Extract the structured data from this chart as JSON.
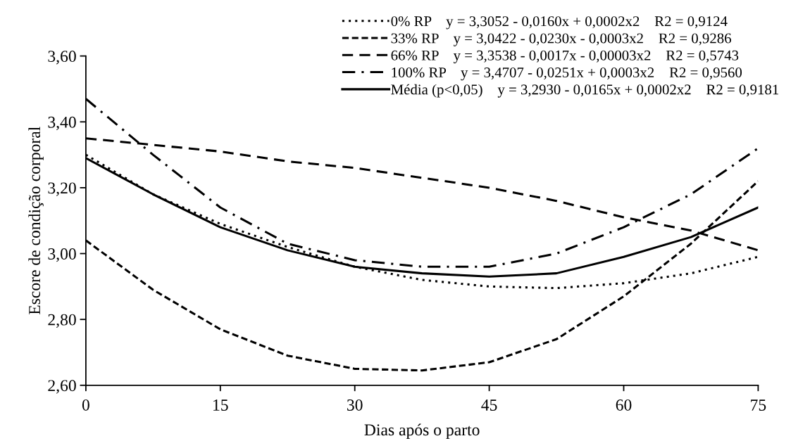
{
  "chart_data": {
    "type": "line",
    "xlabel": "Dias após o parto",
    "ylabel": "Escore de condição corporal",
    "x": [
      0,
      7.5,
      15,
      22.5,
      30,
      37.5,
      45,
      52.5,
      60,
      67.5,
      75
    ],
    "xlim": [
      0,
      75
    ],
    "xticks": [
      0,
      15,
      30,
      45,
      60,
      75
    ],
    "ylim": [
      2.6,
      3.6
    ],
    "yticks": [
      {
        "value": 2.6,
        "label": "2,60"
      },
      {
        "value": 2.8,
        "label": "2,80"
      },
      {
        "value": 3.0,
        "label": "3,00"
      },
      {
        "value": 3.2,
        "label": "3,20"
      },
      {
        "value": 3.4,
        "label": "3,40"
      },
      {
        "value": 3.6,
        "label": "3,60"
      }
    ],
    "grid": false,
    "legend": "top right",
    "marker": "none",
    "series": [
      {
        "name": "0% RP    y = 3,3052 - 0,0160x + 0,0002x2    R2 = 0,9124",
        "color": "#000000",
        "line_style": "dotted",
        "values": [
          3.3,
          3.18,
          3.09,
          3.02,
          2.96,
          2.92,
          2.9,
          2.895,
          2.91,
          2.94,
          2.99
        ]
      },
      {
        "name": "33% RP    y = 3,0422 - 0,0230x - 0,0003x2    R2 = 0,9286",
        "color": "#000000",
        "line_style": "dashed",
        "values": [
          3.04,
          2.89,
          2.77,
          2.69,
          2.65,
          2.645,
          2.67,
          2.74,
          2.87,
          3.03,
          3.22
        ]
      },
      {
        "name": "66% RP    y = 3,3538 - 0,0017x - 0,00003x2    R2 = 0,5743",
        "color": "#000000",
        "line_style": "longdash",
        "values": [
          3.35,
          3.33,
          3.31,
          3.28,
          3.26,
          3.23,
          3.2,
          3.16,
          3.11,
          3.07,
          3.01
        ]
      },
      {
        "name": "100% RP    y = 3,4707 - 0,0251x + 0,0003x2    R2 = 0,9560",
        "color": "#000000",
        "line_style": "dashdot",
        "values": [
          3.47,
          3.3,
          3.14,
          3.03,
          2.98,
          2.96,
          2.96,
          3.0,
          3.08,
          3.18,
          3.32
        ]
      },
      {
        "name": "Média (p<0,05)    y = 3,2930 - 0,0165x + 0,0002x2    R2 = 0,9181",
        "color": "#000000",
        "line_style": "solid",
        "values": [
          3.29,
          3.18,
          3.08,
          3.01,
          2.96,
          2.94,
          2.93,
          2.94,
          2.99,
          3.05,
          3.14
        ]
      }
    ]
  }
}
